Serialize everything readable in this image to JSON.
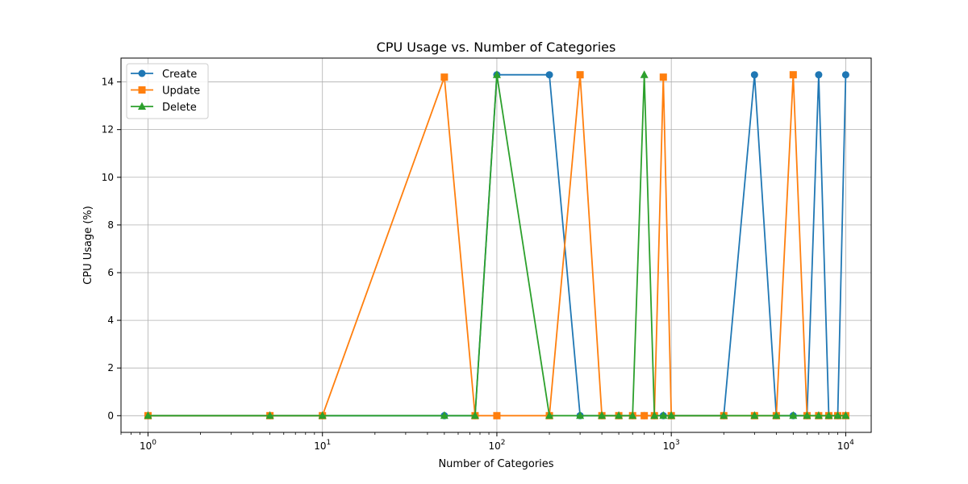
{
  "chart_data": {
    "type": "line",
    "title": "CPU Usage vs. Number of Categories",
    "xlabel": "Number of Categories",
    "ylabel": "CPU Usage (%)",
    "xscale": "log",
    "xlim": [
      0.7,
      14000
    ],
    "ylim": [
      -0.7,
      15.0
    ],
    "grid": true,
    "legend_position": "top-left",
    "x": [
      1,
      5,
      10,
      50,
      75,
      100,
      200,
      300,
      400,
      500,
      600,
      700,
      800,
      900,
      1000,
      2000,
      3000,
      4000,
      5000,
      6000,
      7000,
      8000,
      9000,
      10000
    ],
    "x_ticks": [
      {
        "value": 1,
        "base": "10",
        "exp": "0"
      },
      {
        "value": 10,
        "base": "10",
        "exp": "1"
      },
      {
        "value": 100,
        "base": "10",
        "exp": "2"
      },
      {
        "value": 1000,
        "base": "10",
        "exp": "3"
      },
      {
        "value": 10000,
        "base": "10",
        "exp": "4"
      }
    ],
    "y_ticks": [
      0,
      2,
      4,
      6,
      8,
      10,
      12,
      14
    ],
    "series": [
      {
        "name": "Create",
        "color": "#1f77b4",
        "marker": "circle",
        "values": [
          0,
          0,
          0,
          0,
          0,
          14.3,
          14.3,
          0,
          0,
          0,
          0,
          0,
          0,
          0,
          0,
          0,
          14.3,
          0,
          0,
          0,
          14.3,
          0,
          0,
          14.3
        ]
      },
      {
        "name": "Update",
        "color": "#ff7f0e",
        "marker": "square",
        "values": [
          0,
          0,
          0,
          14.2,
          0,
          0,
          0,
          14.3,
          0,
          0,
          0,
          0,
          0,
          14.2,
          0,
          0,
          0,
          0,
          14.3,
          0,
          0,
          0,
          0,
          0
        ]
      },
      {
        "name": "Delete",
        "color": "#2ca02c",
        "marker": "triangle",
        "values": [
          0,
          0,
          0,
          0,
          0,
          14.3,
          0,
          0,
          0,
          0,
          0,
          14.3,
          0,
          0,
          0,
          0,
          0,
          0,
          0,
          0,
          0,
          0,
          0,
          0
        ]
      }
    ]
  }
}
